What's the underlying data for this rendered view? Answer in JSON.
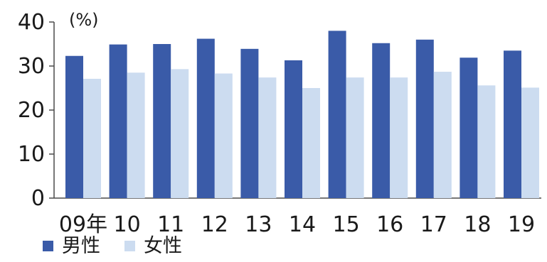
{
  "chart_data": {
    "type": "bar",
    "unit_label": "(%)",
    "categories": [
      "09年",
      "10",
      "11",
      "12",
      "13",
      "14",
      "15",
      "16",
      "17",
      "18",
      "19"
    ],
    "series": [
      {
        "name": "男性",
        "color": "#3a5ba8",
        "values": [
          32.3,
          34.9,
          35.0,
          36.2,
          33.9,
          31.3,
          38.0,
          35.2,
          36.0,
          31.9,
          33.5
        ]
      },
      {
        "name": "女性",
        "color": "#ccdcf0",
        "values": [
          27.1,
          28.5,
          29.3,
          28.3,
          27.4,
          25.0,
          27.4,
          27.4,
          28.7,
          25.6,
          25.1
        ]
      }
    ],
    "ylim": [
      0,
      40
    ],
    "yticks": [
      0,
      10,
      20,
      30,
      40
    ],
    "grid": false,
    "legend_position": "bottom-left"
  }
}
